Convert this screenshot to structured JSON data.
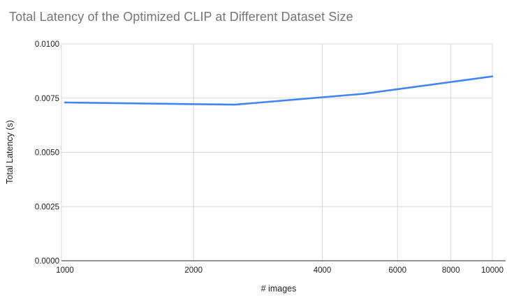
{
  "chart_data": {
    "type": "line",
    "title": "Total Latency of the Optimized CLIP at Different Dataset Size",
    "xlabel": "# images",
    "ylabel": "Total Latency (s)",
    "x_scale": "log",
    "x": [
      1000,
      2500,
      5000,
      10000
    ],
    "y": [
      0.0073,
      0.0072,
      0.0077,
      0.0085
    ],
    "xlim": [
      1000,
      10000
    ],
    "ylim": [
      0,
      0.01
    ],
    "x_ticks": [
      1000,
      2000,
      4000,
      6000,
      8000,
      10000
    ],
    "x_tick_labels": [
      "1000",
      "2000",
      "4000",
      "6000",
      "8000",
      "10000"
    ],
    "y_ticks": [
      0,
      0.0025,
      0.005,
      0.0075,
      0.01
    ],
    "y_tick_labels": [
      "0.0000",
      "0.0025",
      "0.0050",
      "0.0075",
      "0.0100"
    ],
    "grid": true,
    "legend": "none",
    "colors": {
      "line": "#4285F4",
      "title_text": "#757575",
      "tick_text": "#1f1f1f",
      "axis_title_text": "#1f1f1f",
      "gridline": "#d9d9d9",
      "axis_line": "#707070",
      "background": "#ffffff"
    }
  }
}
